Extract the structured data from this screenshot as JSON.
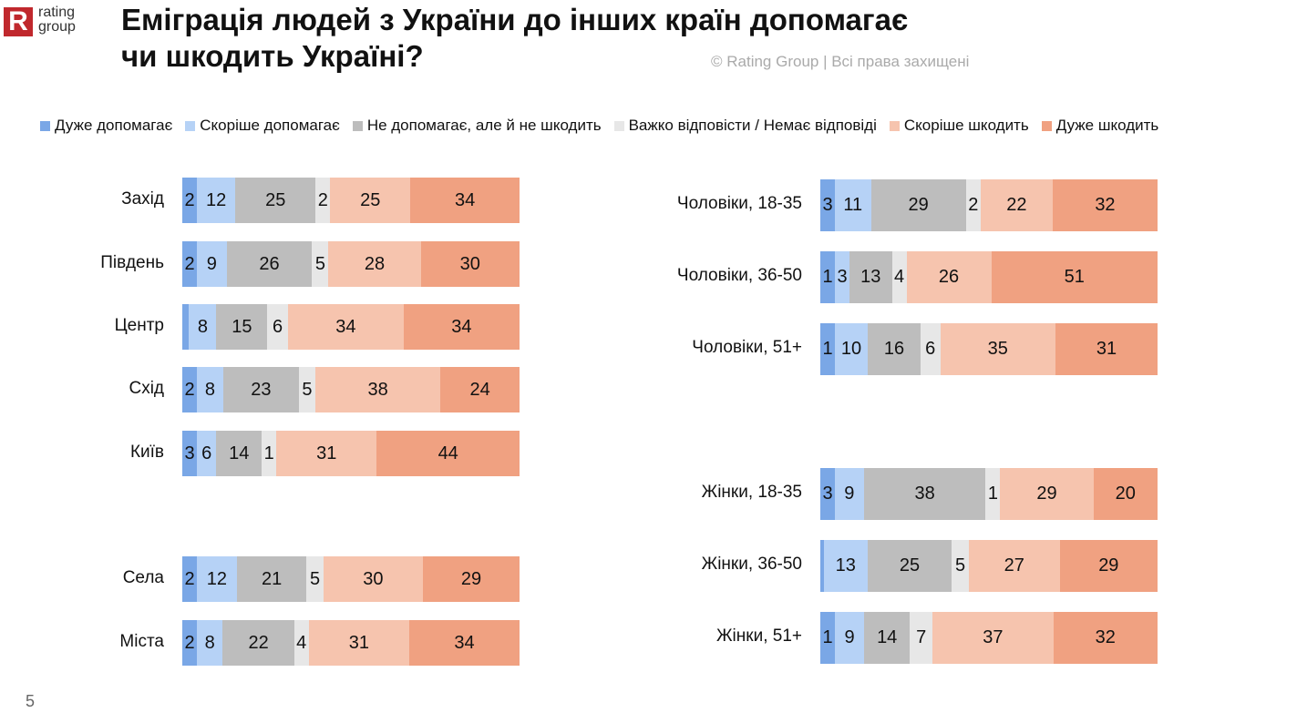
{
  "logo": {
    "mark": "R",
    "text1": "rating",
    "text2": "group"
  },
  "title_line1": "Еміграція людей з України до інших країн допомагає",
  "title_line2": "чи шкодить Україні?",
  "copyright": "© Rating Group | Всі права захищені",
  "page_number": "5",
  "chart_data": {
    "type": "bar",
    "orientation": "horizontal-stacked-100",
    "legend": [
      {
        "name": "Дуже допомагає",
        "color": "#7aa7e6"
      },
      {
        "name": "Скоріше допомагає",
        "color": "#b6d2f6"
      },
      {
        "name": "Не допомагає, але й не шкодить",
        "color": "#bdbdbd"
      },
      {
        "name": "Важко відповісти / Немає відповіді",
        "color": "#e7e7e7"
      },
      {
        "name": "Скоріше шкодить",
        "color": "#f6c4ae"
      },
      {
        "name": "Дуже шкодить",
        "color": "#f0a181"
      }
    ],
    "panels": [
      {
        "name": "left",
        "rows": [
          {
            "label": "Захід",
            "values": [
              2,
              12,
              25,
              2,
              25,
              34
            ]
          },
          {
            "label": "Південь",
            "values": [
              2,
              9,
              26,
              5,
              28,
              30
            ]
          },
          {
            "label": "Центр",
            "values": [
              2,
              8,
              15,
              6,
              34,
              34
            ],
            "hidden_labels": [
              0
            ]
          },
          {
            "label": "Схід",
            "values": [
              2,
              8,
              23,
              5,
              38,
              24
            ]
          },
          {
            "label": "Київ",
            "values": [
              3,
              6,
              14,
              1,
              31,
              44
            ]
          },
          {
            "label": "Села",
            "values": [
              2,
              12,
              21,
              5,
              30,
              29
            ]
          },
          {
            "label": "Міста",
            "values": [
              2,
              8,
              22,
              4,
              31,
              34
            ]
          }
        ]
      },
      {
        "name": "right",
        "rows": [
          {
            "label": "Чоловіки, 18-35",
            "values": [
              3,
              11,
              29,
              2,
              22,
              32
            ]
          },
          {
            "label": "Чоловіки, 36-50",
            "values": [
              1,
              3,
              13,
              4,
              26,
              51
            ]
          },
          {
            "label": "Чоловіки, 51+",
            "values": [
              1,
              10,
              16,
              6,
              35,
              31
            ]
          },
          {
            "label": "Жінки, 18-35",
            "values": [
              3,
              9,
              38,
              1,
              29,
              20
            ]
          },
          {
            "label": "Жінки, 36-50",
            "values": [
              1,
              13,
              25,
              5,
              27,
              29
            ],
            "hidden_labels": [
              0
            ]
          },
          {
            "label": "Жінки, 51+",
            "values": [
              1,
              9,
              14,
              7,
              37,
              32
            ]
          }
        ]
      }
    ]
  }
}
